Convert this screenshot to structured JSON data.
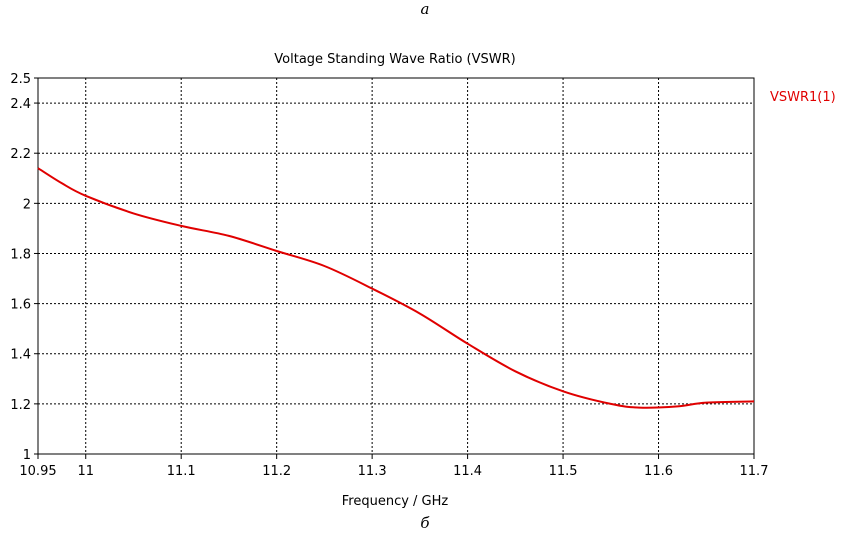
{
  "captions": {
    "top": "a",
    "bottom": "б"
  },
  "chart_data": {
    "type": "line",
    "title": "Voltage Standing Wave Ratio (VSWR)",
    "xlabel": "Frequency / GHz",
    "ylabel": "",
    "xlim": [
      10.95,
      11.7
    ],
    "ylim": [
      1,
      2.5
    ],
    "x_ticks": [
      10.95,
      11,
      11.1,
      11.2,
      11.3,
      11.4,
      11.5,
      11.6,
      11.7
    ],
    "x_tick_labels": [
      "10.95",
      "11",
      "11.1",
      "11.2",
      "11.3",
      "11.4",
      "11.5",
      "11.6",
      "11.7"
    ],
    "y_ticks": [
      1,
      1.2,
      1.4,
      1.6,
      1.8,
      2,
      2.2,
      2.4,
      2.5
    ],
    "y_tick_labels": [
      "1",
      "1.2",
      "1.4",
      "1.6",
      "1.8",
      "2",
      "2.2",
      "2.4",
      "2.5"
    ],
    "grid": true,
    "legend_position": "right",
    "series": [
      {
        "name": "VSWR1(1)",
        "color": "#e00000",
        "x": [
          10.95,
          10.975,
          11.0,
          11.05,
          11.1,
          11.15,
          11.2,
          11.25,
          11.3,
          11.35,
          11.4,
          11.45,
          11.5,
          11.55,
          11.58,
          11.62,
          11.65,
          11.7
        ],
        "y": [
          2.14,
          2.08,
          2.03,
          1.96,
          1.91,
          1.87,
          1.81,
          1.75,
          1.66,
          1.56,
          1.44,
          1.33,
          1.25,
          1.2,
          1.185,
          1.19,
          1.205,
          1.21
        ]
      }
    ]
  }
}
